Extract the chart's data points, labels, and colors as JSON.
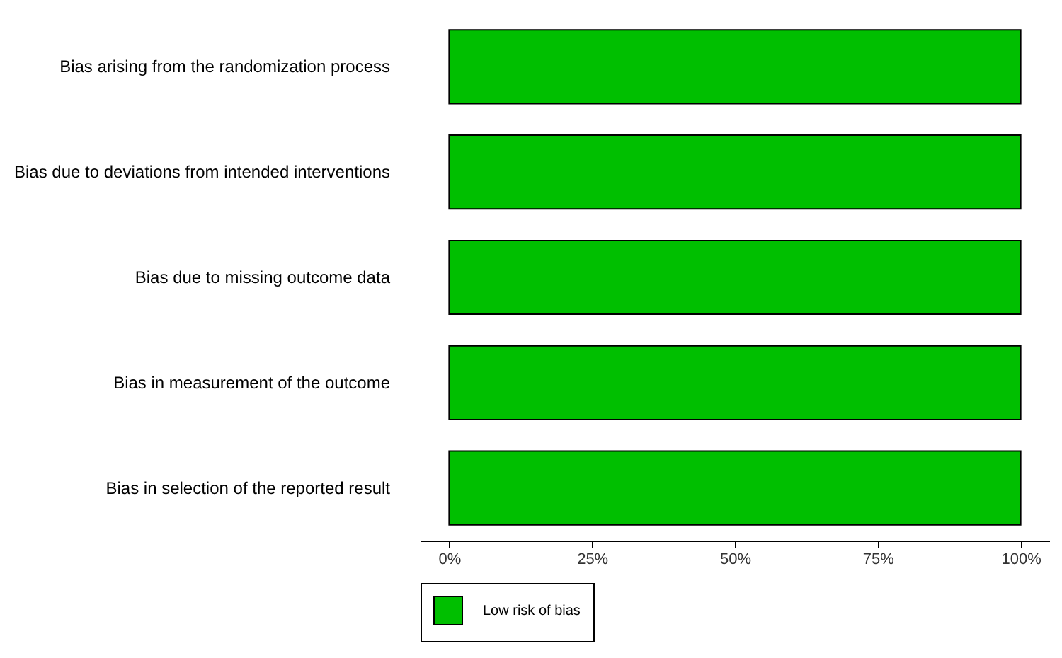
{
  "chart_data": {
    "type": "bar",
    "orientation": "horizontal",
    "categories": [
      "Bias arising from the randomization process",
      "Bias due to deviations from intended interventions",
      "Bias due to missing outcome data",
      "Bias in measurement of the outcome",
      "Bias in selection of the reported result"
    ],
    "series": [
      {
        "name": "Low risk of bias",
        "color": "#00bf00",
        "values": [
          100,
          100,
          100,
          100,
          100
        ]
      }
    ],
    "xlim": [
      -5,
      105
    ],
    "xticks": [
      {
        "value": 0,
        "label": "0%"
      },
      {
        "value": 25,
        "label": "25%"
      },
      {
        "value": 50,
        "label": "50%"
      },
      {
        "value": 75,
        "label": "75%"
      },
      {
        "value": 100,
        "label": "100%"
      }
    ],
    "grid": false,
    "legend": "bottom"
  }
}
